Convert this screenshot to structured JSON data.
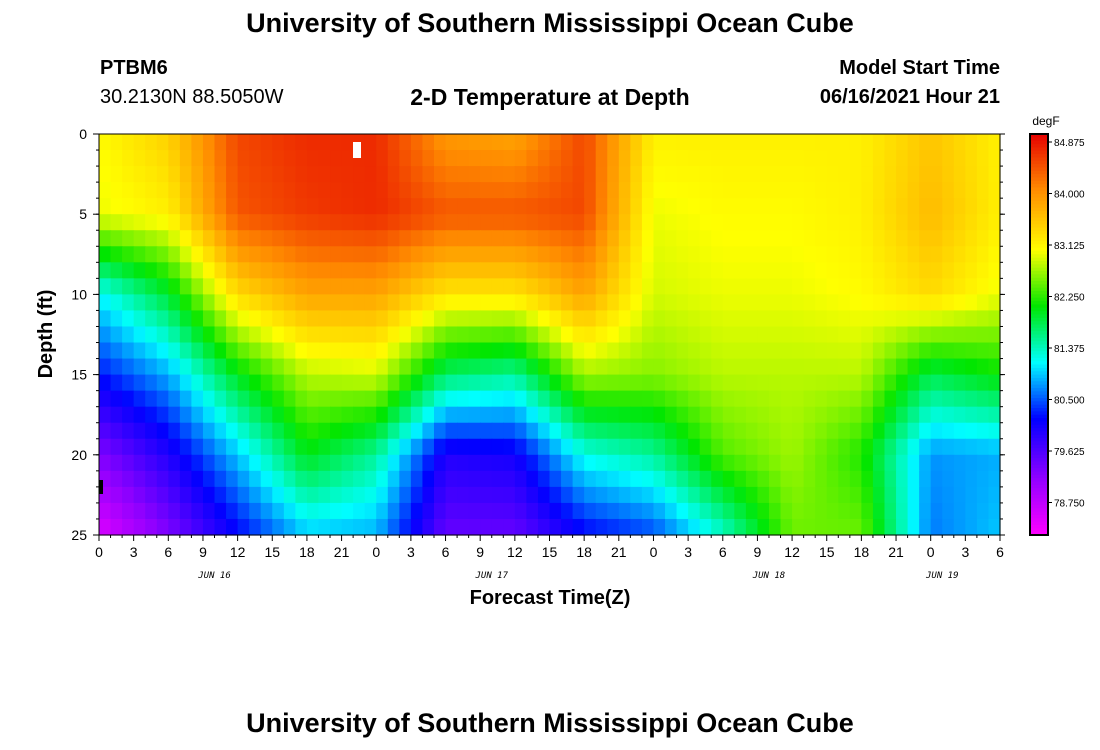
{
  "header": {
    "title": "University of Southern Mississippi Ocean Cube",
    "station": "PTBM6",
    "coords": "30.2130N  88.5050W",
    "plot_title": "2-D Temperature at Depth",
    "model_label": "Model Start Time",
    "model_start": "06/16/2021 Hour 21"
  },
  "footer": {
    "title": "University of Southern Mississippi Ocean Cube"
  },
  "chart_data": {
    "type": "heatmap",
    "title": "2-D Temperature at Depth",
    "xlabel": "Forecast Time(Z)",
    "ylabel": "Depth (ft)",
    "x_hours": [
      0,
      6,
      12,
      18,
      24,
      30,
      36,
      42,
      48,
      54,
      60,
      66,
      72,
      78
    ],
    "x_ticks": [
      "0",
      "3",
      "6",
      "9",
      "12",
      "15",
      "18",
      "21",
      "0",
      "3",
      "6",
      "9",
      "12",
      "15",
      "18",
      "21",
      "0",
      "3",
      "6",
      "9",
      "12",
      "15",
      "18",
      "21",
      "0",
      "3",
      "6"
    ],
    "x_dates": [
      {
        "label": "JUN 16",
        "hour": 10
      },
      {
        "label": "JUN 17",
        "hour": 34
      },
      {
        "label": "JUN 18",
        "hour": 58
      },
      {
        "label": "JUN 19",
        "hour": 73
      }
    ],
    "depths_ft": [
      0,
      5,
      10,
      15,
      20,
      25
    ],
    "ylim": [
      0,
      25
    ],
    "xlim_hours": [
      0,
      78
    ],
    "z_unit": "degF",
    "colorbar_ticks": [
      "84.875",
      "84.000",
      "83.125",
      "82.250",
      "81.375",
      "80.500",
      "79.625",
      "78.750"
    ],
    "zlim": [
      78.2,
      85.2
    ],
    "values_degF": [
      [
        83.2,
        83.6,
        84.7,
        84.9,
        84.9,
        84.1,
        84.0,
        84.7,
        83.3,
        83.3,
        83.3,
        83.3,
        83.7,
        83.3
      ],
      [
        83.1,
        83.3,
        84.6,
        84.8,
        84.9,
        84.6,
        84.6,
        84.7,
        83.1,
        83.2,
        83.2,
        83.3,
        83.8,
        83.3
      ],
      [
        81.2,
        82.0,
        83.5,
        84.0,
        84.0,
        83.4,
        83.4,
        84.0,
        83.0,
        83.1,
        83.1,
        83.2,
        83.5,
        83.1
      ],
      [
        80.3,
        80.9,
        82.1,
        82.9,
        83.0,
        81.8,
        81.6,
        82.8,
        82.7,
        82.9,
        82.9,
        82.9,
        81.9,
        82.2
      ],
      [
        79.3,
        80.0,
        81.0,
        82.1,
        81.6,
        80.0,
        80.1,
        81.3,
        81.6,
        82.5,
        82.8,
        82.3,
        80.8,
        80.9
      ],
      [
        78.5,
        79.3,
        80.2,
        81.0,
        80.9,
        79.5,
        79.5,
        80.2,
        80.5,
        81.4,
        82.6,
        82.6,
        80.7,
        81.0
      ]
    ]
  }
}
